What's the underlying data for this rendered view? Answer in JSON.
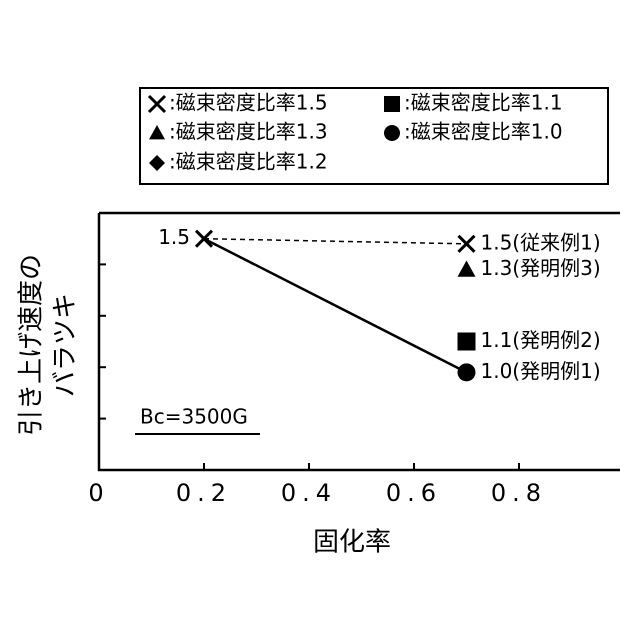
{
  "chart_data": {
    "type": "scatter",
    "xlabel": "固化率",
    "ylabel_lines": [
      "引き上げ速度の",
      "バラツキ"
    ],
    "annotation": "Bc=3500G",
    "xlim": [
      0,
      1
    ],
    "xticks": [
      0,
      {
        "value": 0.2,
        "label": "0.2"
      },
      {
        "value": 0.4,
        "label": "0.4"
      },
      {
        "value": 0.6,
        "label": "0.6"
      },
      {
        "value": 0.8,
        "label": "0.8"
      }
    ],
    "ylim": [
      0,
      5
    ],
    "yticks": [
      1,
      2,
      3,
      4
    ],
    "series": [
      {
        "name": ":磁束密度比率1.5",
        "marker": "x",
        "line": "dashed",
        "color": "#000000",
        "x": [
          0.2,
          0.7
        ],
        "values": [
          4.5,
          4.4
        ],
        "point_labels": [
          "1.5",
          "1.5(従来例1)"
        ]
      },
      {
        "name": ":磁束密度比率1.3",
        "marker": "triangle",
        "line": "none",
        "color": "#000000",
        "x": [
          0.7
        ],
        "values": [
          3.9
        ],
        "point_labels": [
          "1.3(発明例3)"
        ]
      },
      {
        "name": ":磁束密度比率1.2",
        "marker": "diamond",
        "line": "none",
        "color": "#000000",
        "x": [],
        "values": [],
        "point_labels": []
      },
      {
        "name": ":磁束密度比率1.1",
        "marker": "square",
        "line": "none",
        "color": "#000000",
        "x": [
          0.7
        ],
        "values": [
          2.5
        ],
        "point_labels": [
          "1.1(発明例2)"
        ]
      },
      {
        "name": ":磁束密度比率1.0",
        "marker": "circle",
        "line": "solid",
        "color": "#000000",
        "x": [
          0.2,
          0.7
        ],
        "values": [
          4.5,
          1.9
        ],
        "point_labels": [
          null,
          "1.0(発明例1)"
        ]
      }
    ]
  }
}
